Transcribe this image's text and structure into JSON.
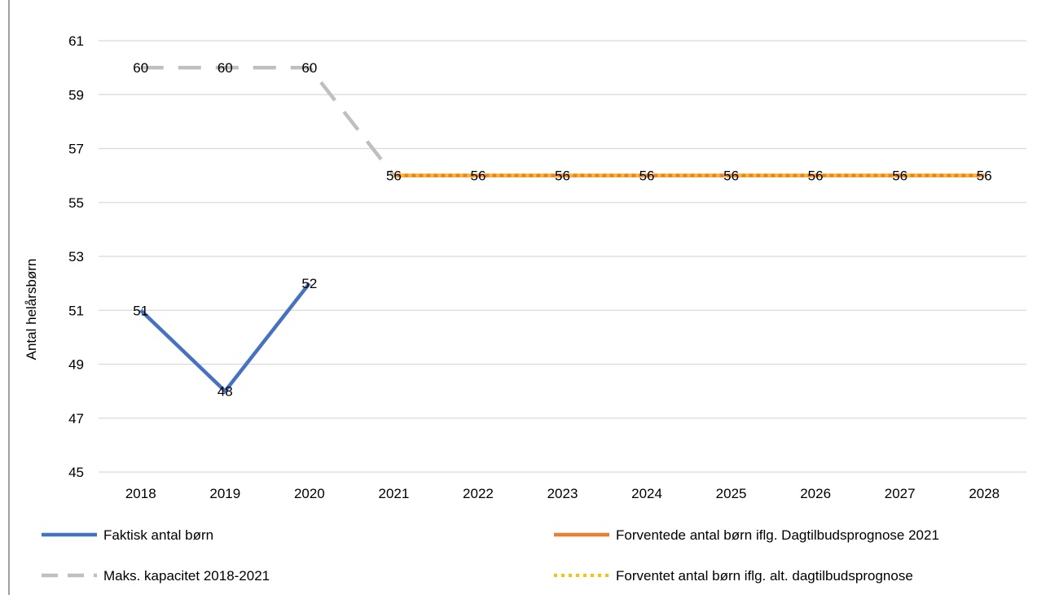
{
  "chart_data": {
    "type": "line",
    "title": "",
    "ylabel": "Antal helårsbørn",
    "xlabel": "",
    "ylim": [
      45,
      61
    ],
    "yticks": [
      45,
      47,
      49,
      51,
      53,
      55,
      57,
      59,
      61
    ],
    "categories": [
      "2018",
      "2019",
      "2020",
      "2021",
      "2022",
      "2023",
      "2024",
      "2025",
      "2026",
      "2027",
      "2028"
    ],
    "grid": true,
    "legend_position": "bottom",
    "series": [
      {
        "name": "Faktisk antal børn",
        "values": [
          51,
          48,
          52,
          null,
          null,
          null,
          null,
          null,
          null,
          null,
          null
        ],
        "color": "#4472C4",
        "style": "solid",
        "show_labels": true
      },
      {
        "name": "Maks. kapacitet 2018-2021",
        "values": [
          60,
          60,
          60,
          56,
          null,
          null,
          null,
          null,
          null,
          null,
          null
        ],
        "color": "#BFBFBF",
        "style": "dashed",
        "show_labels": true
      },
      {
        "name": "Forventede antal børn iflg. Dagtilbudsprognose 2021",
        "values": [
          null,
          null,
          null,
          56,
          56,
          56,
          56,
          56,
          56,
          56,
          56
        ],
        "color": "#ED7D31",
        "style": "solid",
        "show_labels": true
      },
      {
        "name": "Forventet antal børn  iflg. alt. dagtilbudsprognose",
        "values": [
          null,
          null,
          null,
          56,
          56,
          56,
          56,
          56,
          56,
          56,
          56
        ],
        "color": "#FFC000",
        "style": "dotted",
        "show_labels": false
      }
    ],
    "overlay_series": {
      "values": [
        null,
        null,
        null,
        56,
        56,
        56,
        56,
        56,
        56,
        56,
        56
      ],
      "color": "#BFBFBF",
      "style": "dotted"
    }
  }
}
